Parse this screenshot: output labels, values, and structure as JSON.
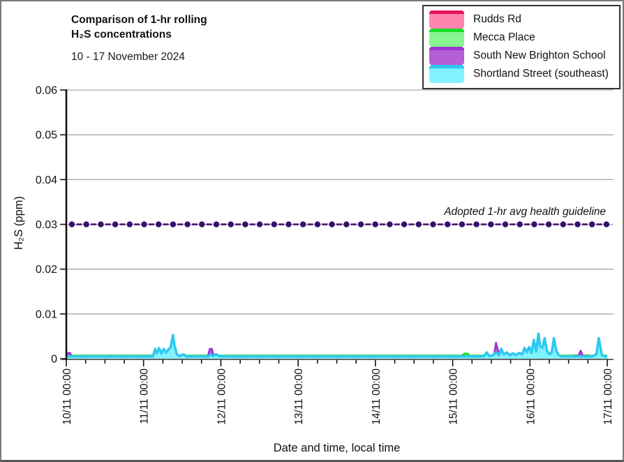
{
  "window": {
    "background": "#ffffff",
    "border_color": "#7a7a7a"
  },
  "header": {
    "title_line1": "Comparison of 1-hr rolling",
    "title_line2": "H₂S concentrations",
    "date_range": "10 - 17 November 2024"
  },
  "chart_data": {
    "type": "area",
    "title": "Comparison of 1-hr rolling H₂S concentrations",
    "subtitle": "10 - 17 November 2024",
    "xlabel": "Date and time, local time",
    "ylabel": "H₂S (ppm)",
    "ylim": [
      0,
      0.06
    ],
    "ytick_values": [
      0,
      0.01,
      0.02,
      0.03,
      0.04,
      0.05,
      0.06
    ],
    "ytick_labels": [
      "0",
      "0.01",
      "0.02",
      "0.03",
      "0.04",
      "0.05",
      "0.06"
    ],
    "xlim_days": [
      0,
      7
    ],
    "xtick_labels": [
      "10/11 00:00",
      "11/11 00:00",
      "12/11 00:00",
      "13/11 00:00",
      "14/11 00:00",
      "15/11 00:00",
      "16/11 00:00",
      "17/11 00:00"
    ],
    "x_minor_step_days": 0.25,
    "grid": "horizontal",
    "grid_color": "#a9a9a9",
    "legend_position": "top-right",
    "guideline": {
      "label": "Adopted 1-hr avg health guideline",
      "value": 0.03,
      "color": "#3a0d6e",
      "style": "dash-dot"
    },
    "series": [
      {
        "name": "Rudds Rd",
        "line_color": "#e8125f",
        "fill_color": "#ff85b0",
        "line_width": 3,
        "points": [
          [
            0,
            0.0003
          ],
          [
            1.2,
            0.0003
          ],
          [
            1.23,
            0.0008
          ],
          [
            1.33,
            0.0009
          ],
          [
            1.43,
            0.0008
          ],
          [
            1.46,
            0.0003
          ],
          [
            1.92,
            0.0003
          ],
          [
            1.94,
            0.0006
          ],
          [
            1.99,
            0.0006
          ],
          [
            2.01,
            0.0003
          ],
          [
            5.55,
            0.0003
          ],
          [
            5.58,
            0.0007
          ],
          [
            5.8,
            0.0007
          ],
          [
            5.95,
            0.0008
          ],
          [
            6.0,
            0.0003
          ],
          [
            6.08,
            0.0003
          ],
          [
            6.1,
            0.0008
          ],
          [
            6.36,
            0.0008
          ],
          [
            6.4,
            0.0003
          ],
          [
            6.53,
            0.0003
          ],
          [
            6.56,
            0.0007
          ],
          [
            6.76,
            0.0007
          ],
          [
            6.8,
            0.0003
          ],
          [
            7,
            0.0003
          ]
        ]
      },
      {
        "name": "Mecca Place",
        "line_color": "#17dc2a",
        "fill_color": "#88f593",
        "line_width": 3,
        "points": [
          [
            0,
            0.00065
          ],
          [
            5.12,
            0.00065
          ],
          [
            5.15,
            0.0011
          ],
          [
            5.19,
            0.0011
          ],
          [
            5.22,
            0.00065
          ],
          [
            7,
            0.00065
          ]
        ]
      },
      {
        "name": "South New Brighton School",
        "line_color": "#9b35cb",
        "fill_color": "#b55fd6",
        "line_width": 2.5,
        "points": [
          [
            0,
            0.0004
          ],
          [
            0.015,
            0.0013
          ],
          [
            0.05,
            0.0013
          ],
          [
            0.07,
            0.0004
          ],
          [
            1.83,
            0.0004
          ],
          [
            1.855,
            0.0022
          ],
          [
            1.885,
            0.0022
          ],
          [
            1.91,
            0.0004
          ],
          [
            5.53,
            0.0004
          ],
          [
            5.56,
            0.0036
          ],
          [
            5.585,
            0.002
          ],
          [
            5.61,
            0.0012
          ],
          [
            5.635,
            0.002
          ],
          [
            5.66,
            0.001
          ],
          [
            5.69,
            0.0004
          ],
          [
            6.62,
            0.0004
          ],
          [
            6.655,
            0.0018
          ],
          [
            6.69,
            0.0004
          ],
          [
            7,
            0.0004
          ]
        ]
      },
      {
        "name": "Shortland Street (southeast)",
        "line_color": "#2fc8f0",
        "fill_color": "#82f2ff",
        "line_width": 3.5,
        "points": [
          [
            0,
            0.0005
          ],
          [
            1.12,
            0.0005
          ],
          [
            1.15,
            0.0022
          ],
          [
            1.17,
            0.0012
          ],
          [
            1.2,
            0.0024
          ],
          [
            1.23,
            0.0012
          ],
          [
            1.26,
            0.0022
          ],
          [
            1.29,
            0.0014
          ],
          [
            1.32,
            0.002
          ],
          [
            1.35,
            0.0026
          ],
          [
            1.38,
            0.0053
          ],
          [
            1.4,
            0.003
          ],
          [
            1.43,
            0.001
          ],
          [
            1.47,
            0.0006
          ],
          [
            1.52,
            0.001
          ],
          [
            1.55,
            0.0005
          ],
          [
            1.84,
            0.0005
          ],
          [
            1.87,
            0.001
          ],
          [
            1.9,
            0.0006
          ],
          [
            1.94,
            0.001
          ],
          [
            1.98,
            0.0005
          ],
          [
            5.4,
            0.0005
          ],
          [
            5.44,
            0.0014
          ],
          [
            5.47,
            0.0006
          ],
          [
            5.52,
            0.0008
          ],
          [
            5.56,
            0.0014
          ],
          [
            5.6,
            0.0008
          ],
          [
            5.63,
            0.0022
          ],
          [
            5.66,
            0.001
          ],
          [
            5.7,
            0.0014
          ],
          [
            5.74,
            0.0008
          ],
          [
            5.78,
            0.0012
          ],
          [
            5.82,
            0.0008
          ],
          [
            5.86,
            0.0013
          ],
          [
            5.9,
            0.001
          ],
          [
            5.93,
            0.0024
          ],
          [
            5.96,
            0.0015
          ],
          [
            5.99,
            0.0026
          ],
          [
            6.02,
            0.0013
          ],
          [
            6.05,
            0.0042
          ],
          [
            6.08,
            0.0016
          ],
          [
            6.11,
            0.0056
          ],
          [
            6.13,
            0.0028
          ],
          [
            6.16,
            0.0024
          ],
          [
            6.19,
            0.0046
          ],
          [
            6.22,
            0.0018
          ],
          [
            6.25,
            0.001
          ],
          [
            6.28,
            0.0014
          ],
          [
            6.31,
            0.0046
          ],
          [
            6.34,
            0.0018
          ],
          [
            6.37,
            0.0008
          ],
          [
            6.42,
            0.0005
          ],
          [
            6.8,
            0.0005
          ],
          [
            6.86,
            0.001
          ],
          [
            6.89,
            0.0046
          ],
          [
            6.91,
            0.0028
          ],
          [
            6.93,
            0.0008
          ],
          [
            6.97,
            0.0005
          ],
          [
            7,
            0.0005
          ]
        ]
      }
    ]
  }
}
